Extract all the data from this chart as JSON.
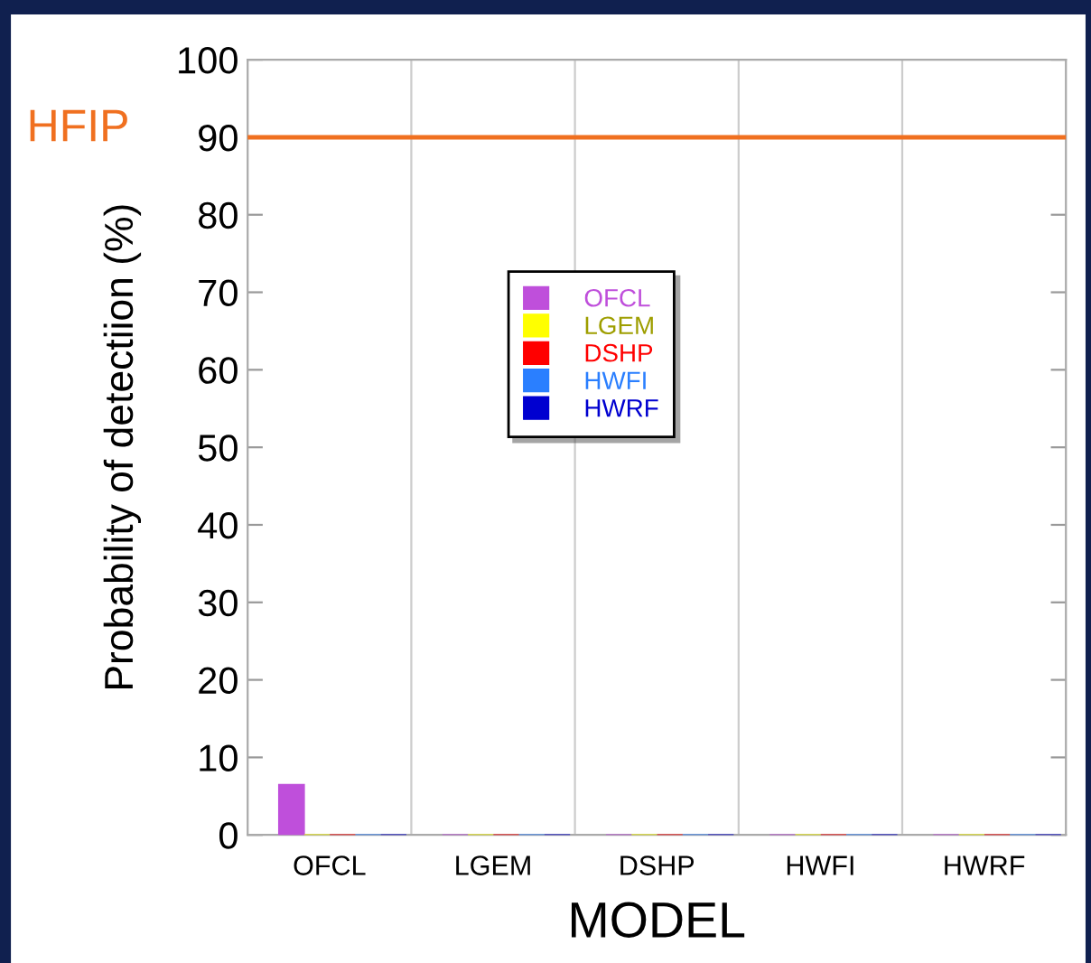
{
  "chart_data": {
    "type": "bar",
    "xlabel": "MODEL",
    "ylabel": "Probability of detectiion (%)",
    "categories": [
      "OFCL",
      "LGEM",
      "DSHP",
      "HWFI",
      "HWRF"
    ],
    "series": [
      {
        "name": "OFCL",
        "color": "#bf4fdb",
        "values": [
          6.5,
          0,
          0,
          0,
          0
        ]
      },
      {
        "name": "LGEM",
        "color": "#ffff00",
        "values": [
          0,
          0,
          0,
          0,
          0
        ]
      },
      {
        "name": "DSHP",
        "color": "#ff0000",
        "values": [
          0,
          0,
          0,
          0,
          0
        ]
      },
      {
        "name": "HWFI",
        "color": "#2a7fff",
        "values": [
          0,
          0,
          0,
          0,
          0
        ]
      },
      {
        "name": "HWRF",
        "color": "#0000d0",
        "values": [
          0,
          0,
          0,
          0,
          0
        ]
      }
    ],
    "ylim": [
      0,
      100
    ],
    "yticks": [
      0,
      10,
      20,
      30,
      40,
      50,
      60,
      70,
      80,
      90,
      100
    ],
    "ref_lines": [
      {
        "axis": "y",
        "value": 90,
        "label": "HFIP",
        "color": "#f07020"
      }
    ],
    "grid": "x",
    "legend": "center"
  }
}
